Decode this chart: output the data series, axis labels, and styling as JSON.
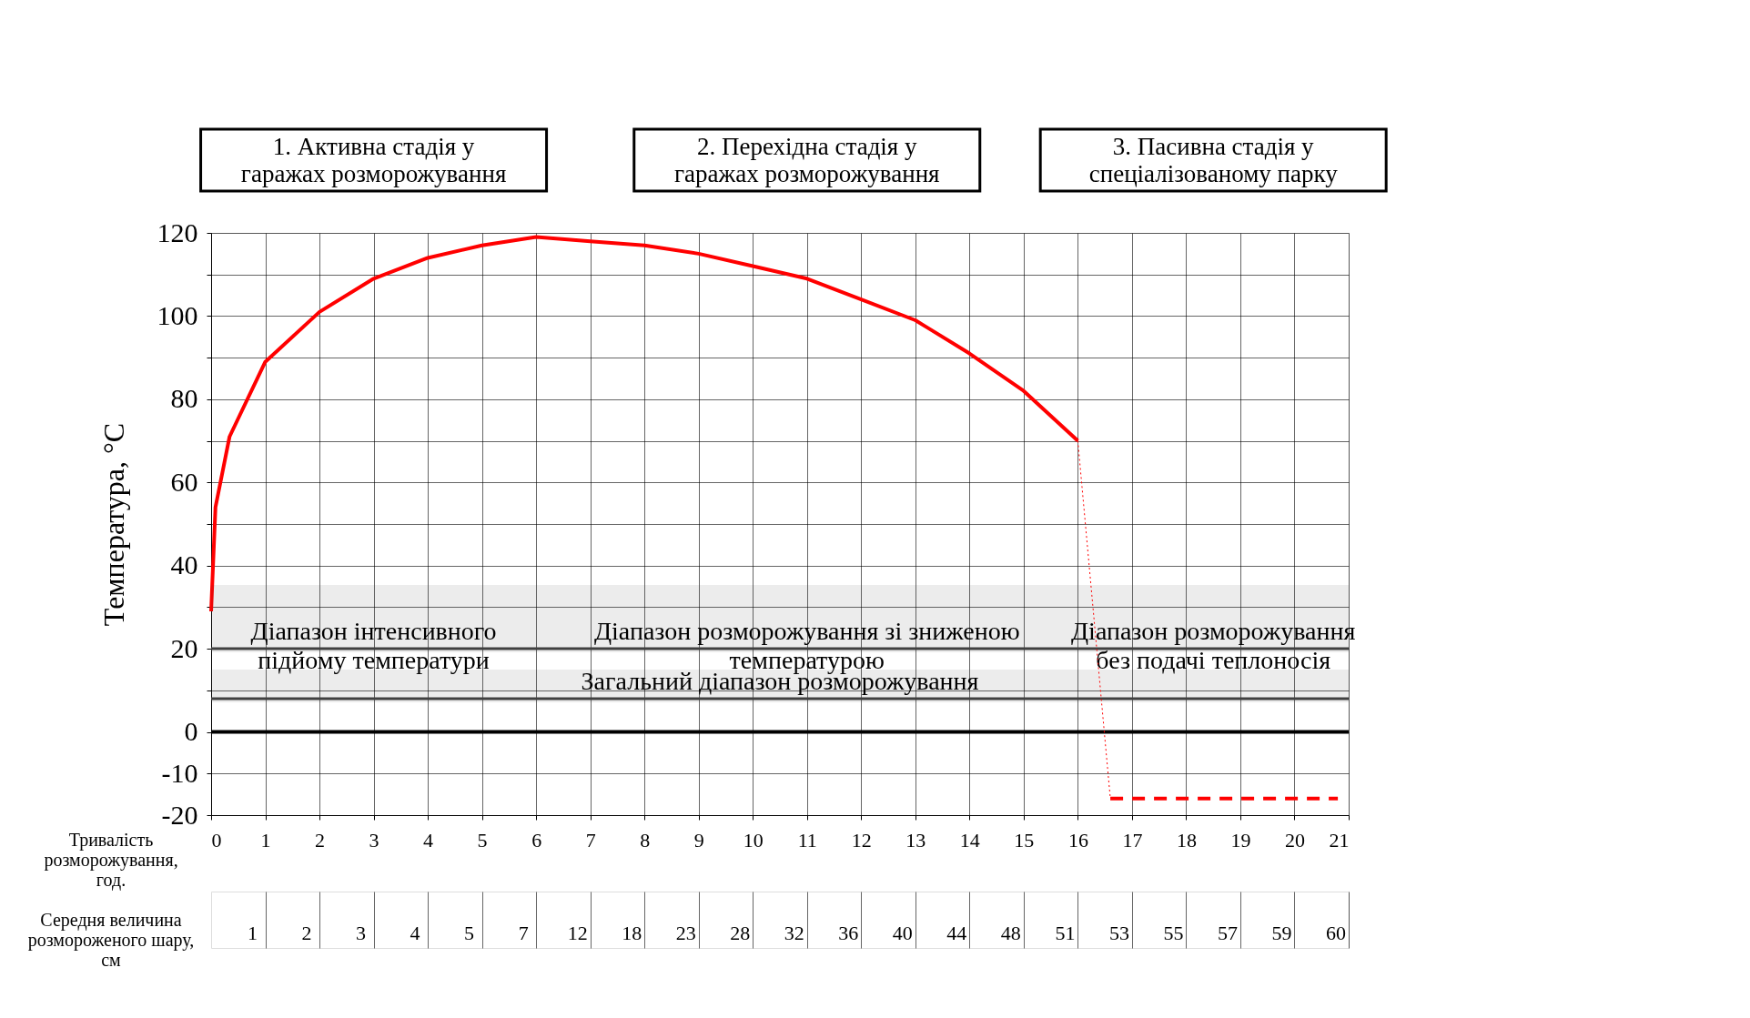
{
  "chart_data": [
    {
      "type": "line",
      "xlabel": "Тривалість розморожування, год.",
      "ylabel": "Температура, °C",
      "xlim": [
        0,
        21
      ],
      "xticks": [
        0,
        1,
        2,
        3,
        4,
        5,
        6,
        7,
        8,
        9,
        10,
        11,
        12,
        13,
        14,
        15,
        16,
        17,
        18,
        19,
        20,
        21
      ],
      "ylim": [
        -20,
        120
      ],
      "yticks": [
        -20,
        -10,
        0,
        {
          "value": 10,
          "label": null
        },
        20,
        {
          "value": 30,
          "label": null
        },
        40,
        {
          "value": 50,
          "label": null
        },
        60,
        {
          "value": 70,
          "label": null
        },
        80,
        {
          "value": 90,
          "label": null
        },
        100,
        {
          "value": 110,
          "label": null
        },
        120
      ],
      "grid": true,
      "series": [
        {
          "color": "#ff0000",
          "line_style": "solid",
          "x": [
            0,
            0.08,
            0.34,
            1,
            2,
            3,
            4,
            5,
            6,
            7,
            8,
            9,
            10,
            11,
            12,
            13,
            14,
            15,
            16
          ],
          "values": [
            29,
            54,
            71,
            89,
            101,
            109,
            114,
            117,
            119,
            118,
            117,
            115,
            112,
            109,
            104,
            99,
            91,
            82,
            70
          ]
        },
        {
          "color": "#ff0000",
          "line_style": "dotted",
          "x": [
            16,
            16.6
          ],
          "values": [
            70,
            -16
          ]
        },
        {
          "color": "#ff0000",
          "line_style": "dashed",
          "x": [
            16.6,
            20.8
          ],
          "values": [
            -16,
            -16
          ]
        }
      ],
      "ref_lines": [
        {
          "axis": "y",
          "value": 0,
          "color": "#000000"
        }
      ],
      "bands": [
        {
          "axis": "x",
          "from": 0,
          "to": 6,
          "label": "Діапазон інтенсивного підйому температури",
          "color": "#404040"
        },
        {
          "axis": "x",
          "from": 6,
          "to": 16,
          "label": "Діапазон розморожування зі зниженою температурою",
          "color": "#404040"
        },
        {
          "axis": "x",
          "from": 16,
          "to": 21,
          "label": "Діапазон розморожування без подачі теплоносія",
          "color": "#404040"
        },
        {
          "axis": "x",
          "from": 0,
          "to": 21,
          "label": "Загальний діапазон розморожування",
          "color": "#404040"
        }
      ],
      "annotations": [
        "1. Активна стадія у гаражах розморожування",
        "2. Перехідна стадія у гаражах розморожування",
        "3. Пасивна стадія у спеціалізованому парку"
      ]
    },
    {
      "type": "other",
      "ylabel": "Середня величина розмороженого шару, см",
      "categories": [
        null,
        null,
        null,
        null,
        null,
        null,
        null,
        null,
        null,
        null,
        null,
        null,
        null,
        null,
        null,
        null,
        null,
        null,
        null,
        null,
        null
      ],
      "values": [
        1,
        2,
        3,
        4,
        5,
        7,
        12,
        18,
        23,
        28,
        32,
        36,
        40,
        44,
        48,
        51,
        53,
        55,
        57,
        59,
        60
      ],
      "data_labels": true
    }
  ]
}
